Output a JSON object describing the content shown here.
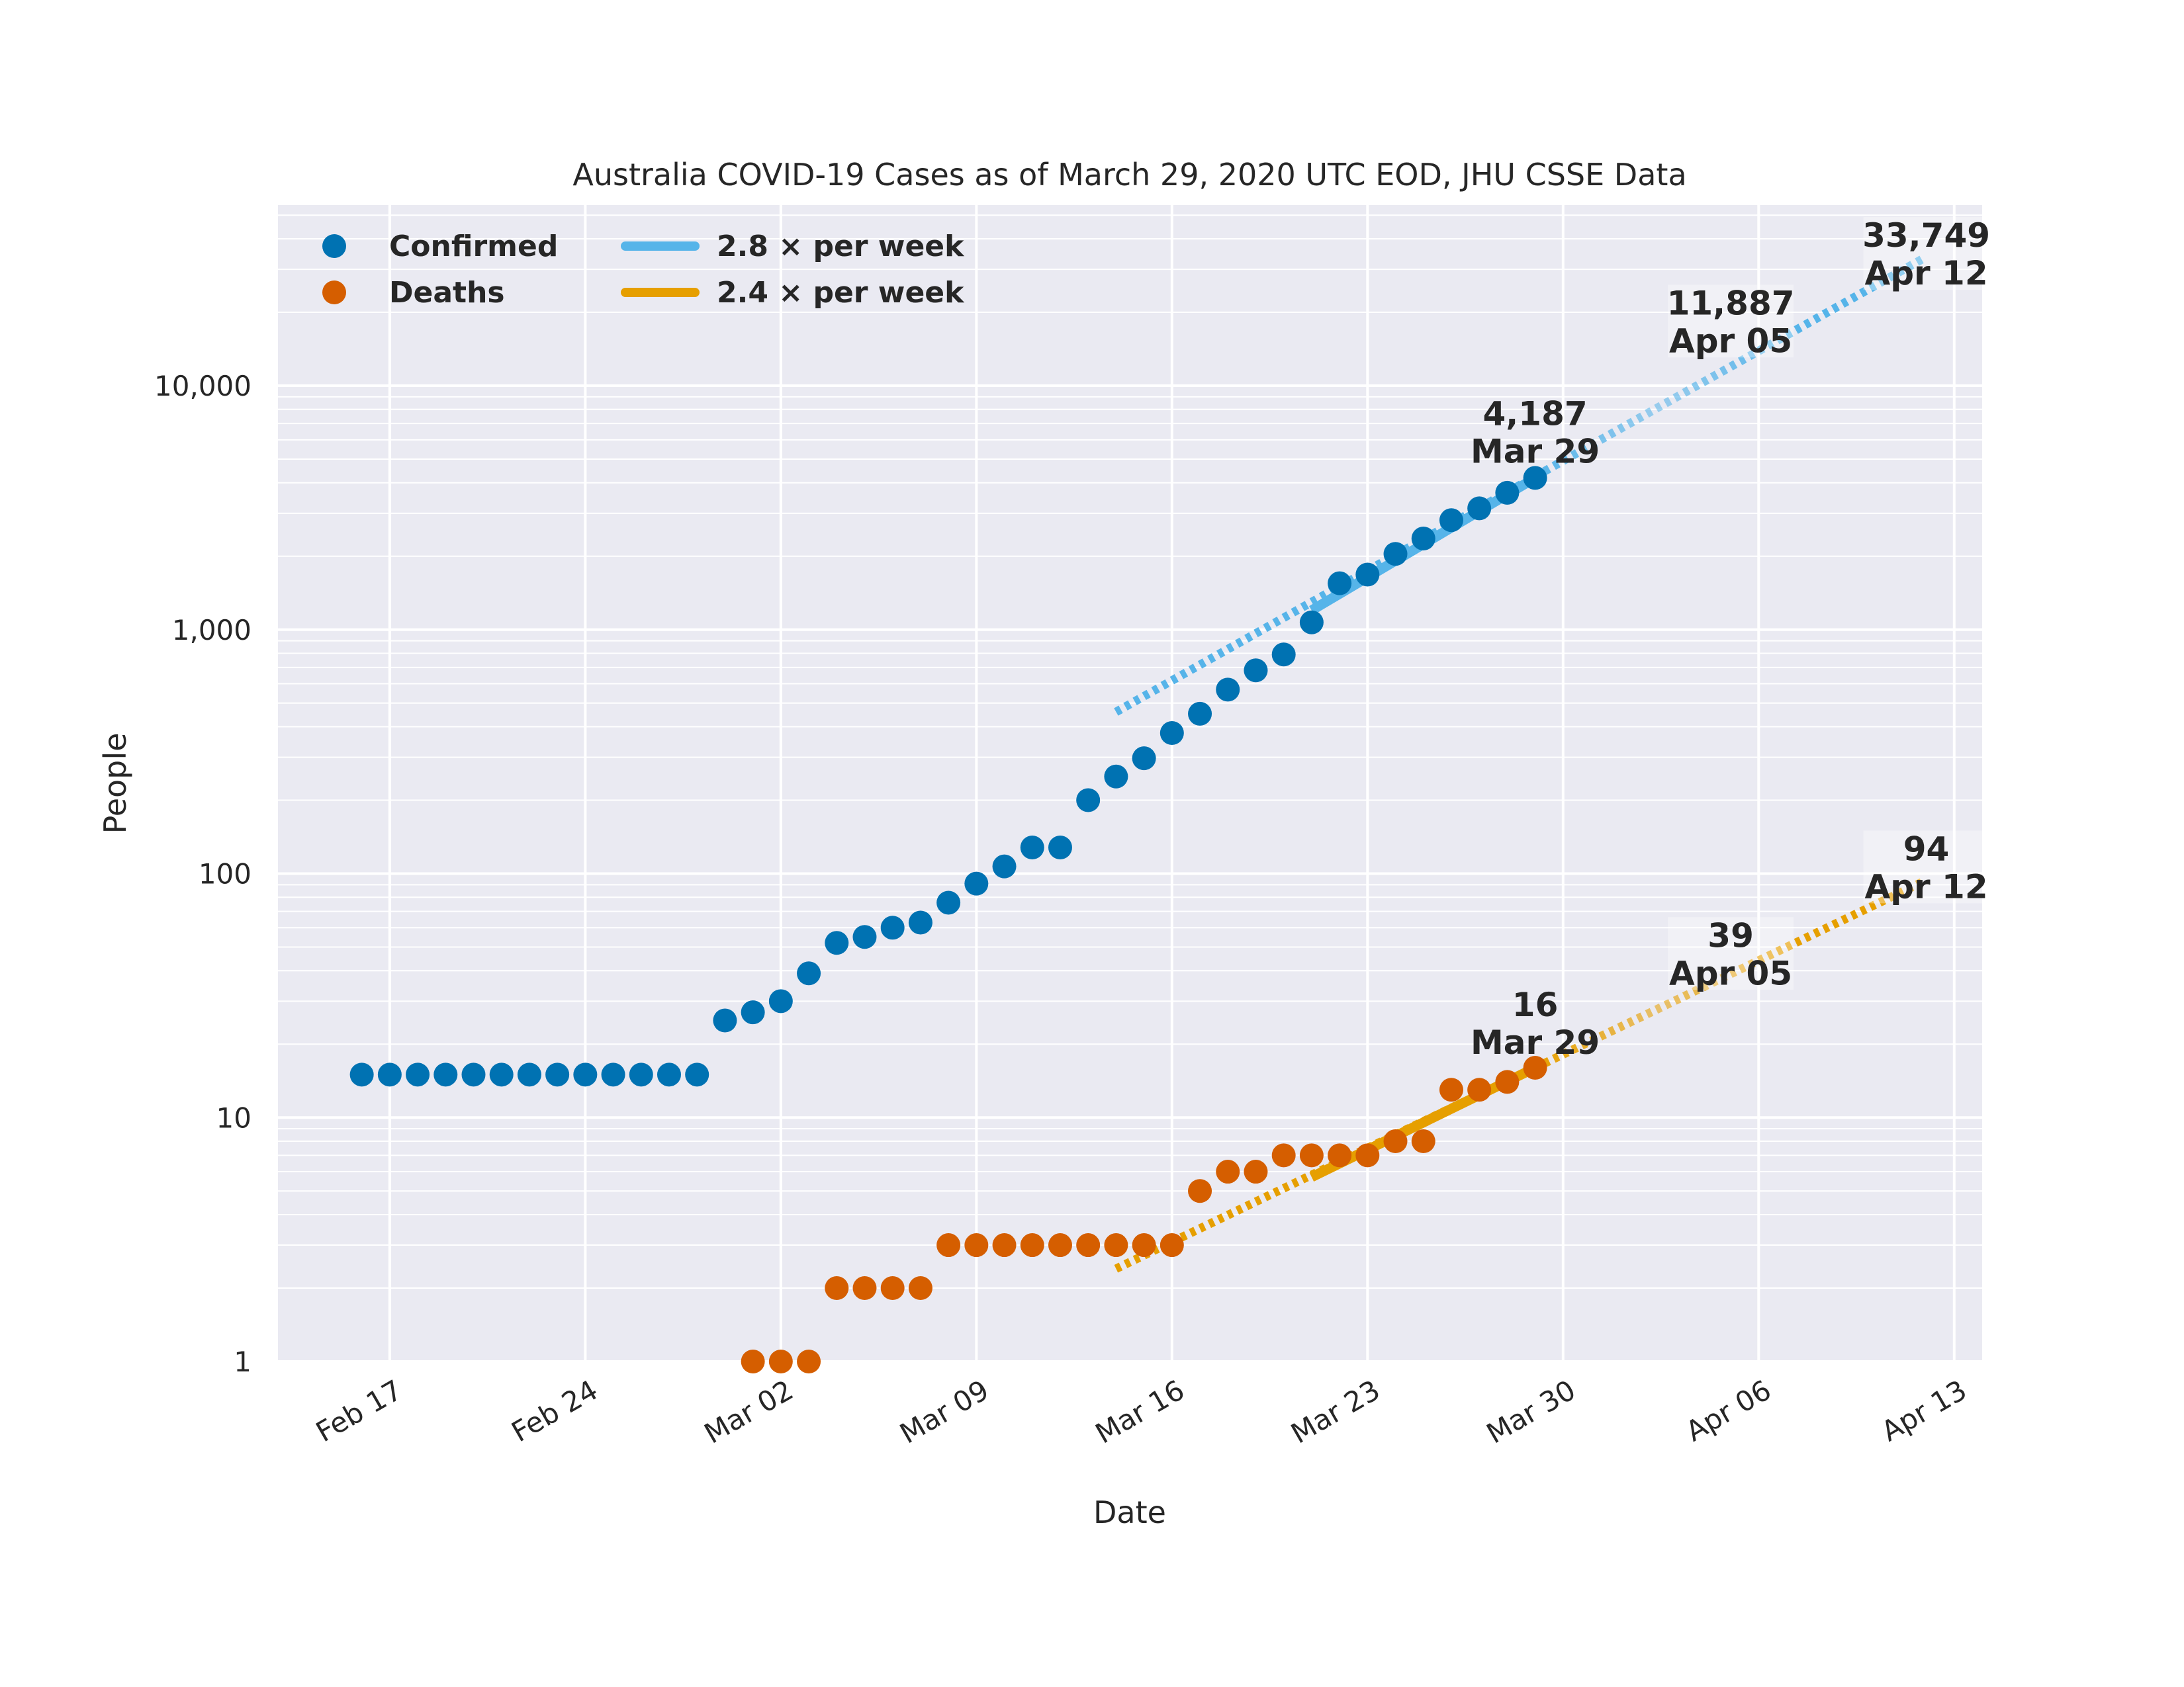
{
  "chart_data": {
    "type": "scatter",
    "title": "Australia COVID-19 Cases as of March 29, 2020 UTC EOD, JHU CSSE Data",
    "xlabel": "Date",
    "ylabel": "People",
    "yscale": "log",
    "ylim": [
      1,
      55000
    ],
    "xlim": [
      "2020-02-13",
      "2020-04-14"
    ],
    "x_tick_labels": [
      "Feb 17",
      "Feb 24",
      "Mar 02",
      "Mar 09",
      "Mar 16",
      "Mar 23",
      "Mar 30",
      "Apr 06",
      "Apr 13"
    ],
    "x_tick_dates": [
      "2020-02-17",
      "2020-02-24",
      "2020-03-02",
      "2020-03-09",
      "2020-03-16",
      "2020-03-23",
      "2020-03-30",
      "2020-04-06",
      "2020-04-13"
    ],
    "y_ticks": [
      1,
      10,
      100,
      1000,
      10000
    ],
    "y_tick_labels": [
      "1",
      "10",
      "100",
      "1,000",
      "10,000"
    ],
    "grid": true,
    "legend_position": "top-left",
    "background": "#EAEAF2",
    "series": [
      {
        "name": "Confirmed",
        "kind": "points",
        "color": "#0072B2",
        "x": [
          "2020-02-16",
          "2020-02-17",
          "2020-02-18",
          "2020-02-19",
          "2020-02-20",
          "2020-02-21",
          "2020-02-22",
          "2020-02-23",
          "2020-02-24",
          "2020-02-25",
          "2020-02-26",
          "2020-02-27",
          "2020-02-28",
          "2020-02-29",
          "2020-03-01",
          "2020-03-02",
          "2020-03-03",
          "2020-03-04",
          "2020-03-05",
          "2020-03-06",
          "2020-03-07",
          "2020-03-08",
          "2020-03-09",
          "2020-03-10",
          "2020-03-11",
          "2020-03-12",
          "2020-03-13",
          "2020-03-14",
          "2020-03-15",
          "2020-03-16",
          "2020-03-17",
          "2020-03-18",
          "2020-03-19",
          "2020-03-20",
          "2020-03-21",
          "2020-03-22",
          "2020-03-23",
          "2020-03-24",
          "2020-03-25",
          "2020-03-26",
          "2020-03-27",
          "2020-03-28",
          "2020-03-29"
        ],
        "values": [
          15,
          15,
          15,
          15,
          15,
          15,
          15,
          15,
          15,
          15,
          15,
          15,
          15,
          25,
          27,
          30,
          39,
          52,
          55,
          60,
          63,
          76,
          91,
          107,
          128,
          128,
          200,
          250,
          297,
          377,
          452,
          568,
          681,
          791,
          1071,
          1549,
          1682,
          2044,
          2364,
          2810,
          3143,
          3640,
          4187
        ]
      },
      {
        "name": "Deaths",
        "kind": "points",
        "color": "#D55E00",
        "x": [
          "2020-03-01",
          "2020-03-02",
          "2020-03-03",
          "2020-03-04",
          "2020-03-05",
          "2020-03-06",
          "2020-03-07",
          "2020-03-08",
          "2020-03-09",
          "2020-03-10",
          "2020-03-11",
          "2020-03-12",
          "2020-03-13",
          "2020-03-14",
          "2020-03-15",
          "2020-03-16",
          "2020-03-17",
          "2020-03-18",
          "2020-03-19",
          "2020-03-20",
          "2020-03-21",
          "2020-03-22",
          "2020-03-23",
          "2020-03-24",
          "2020-03-25",
          "2020-03-26",
          "2020-03-27",
          "2020-03-28",
          "2020-03-29"
        ],
        "values": [
          1,
          1,
          1,
          2,
          2,
          2,
          2,
          3,
          3,
          3,
          3,
          3,
          3,
          3,
          3,
          3,
          5,
          6,
          6,
          7,
          7,
          7,
          7,
          8,
          8,
          13,
          13,
          14,
          16
        ]
      },
      {
        "name": "2.8 × per week",
        "kind": "fit",
        "color": "#56B4E9",
        "fit_x": [
          "2020-03-21",
          "2020-03-29"
        ],
        "fit_y": [
          1200,
          4187
        ],
        "projection_x": [
          "2020-03-14",
          "2020-04-12"
        ],
        "projection_y": [
          460,
          33749
        ]
      },
      {
        "name": "2.4 × per week",
        "kind": "fit",
        "color": "#E69F00",
        "fit_x": [
          "2020-03-21",
          "2020-03-29"
        ],
        "fit_y": [
          5.7,
          16
        ],
        "projection_x": [
          "2020-03-14",
          "2020-04-12"
        ],
        "projection_y": [
          2.4,
          94
        ]
      }
    ],
    "annotations": [
      {
        "value_label": "4,187",
        "date_label": "Mar 29",
        "x": "2020-03-29",
        "y": 4187,
        "series": "Confirmed"
      },
      {
        "value_label": "11,887",
        "date_label": "Apr 05",
        "x": "2020-04-05",
        "y": 11887,
        "series": "Confirmed"
      },
      {
        "value_label": "33,749",
        "date_label": "Apr 12",
        "x": "2020-04-12",
        "y": 33749,
        "series": "Confirmed"
      },
      {
        "value_label": "16",
        "date_label": "Mar 29",
        "x": "2020-03-29",
        "y": 16,
        "series": "Deaths"
      },
      {
        "value_label": "39",
        "date_label": "Apr 05",
        "x": "2020-04-05",
        "y": 39,
        "series": "Deaths"
      },
      {
        "value_label": "94",
        "date_label": "Apr 12",
        "x": "2020-04-12",
        "y": 94,
        "series": "Deaths"
      }
    ]
  }
}
